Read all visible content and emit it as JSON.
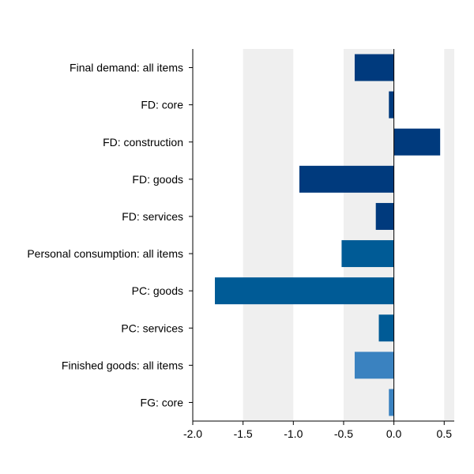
{
  "chart_data": {
    "type": "bar",
    "orientation": "horizontal",
    "categories": [
      "Final demand: all items",
      "FD: core",
      "FD: construction",
      "FD: goods",
      "FD: services",
      "Personal consumption: all items",
      "PC: goods",
      "PC: services",
      "Finished goods: all items",
      "FG: core"
    ],
    "values": [
      -0.39,
      -0.05,
      0.46,
      -0.94,
      -0.18,
      -0.52,
      -1.78,
      -0.15,
      -0.39,
      -0.05
    ],
    "bar_colors": [
      "#003a7d",
      "#003a7d",
      "#003a7d",
      "#003a7d",
      "#003a7d",
      "#005b96",
      "#005b96",
      "#005b96",
      "#3a82c0",
      "#3a82c0"
    ],
    "xlim": [
      -2.0,
      0.6
    ],
    "xticks": [
      -2.0,
      -1.5,
      -1.0,
      -0.5,
      0.0,
      0.5
    ],
    "xtick_labels": [
      "-2.0",
      "-1.5",
      "-1.0",
      "-0.5",
      "0.0",
      "0.5"
    ],
    "title": "",
    "xlabel": "",
    "ylabel": "",
    "background_bands": "alternating light gray every 0.5 units",
    "grid": false,
    "legend": "none"
  },
  "colors": {
    "band": "#efefef",
    "axis": "#000000"
  }
}
